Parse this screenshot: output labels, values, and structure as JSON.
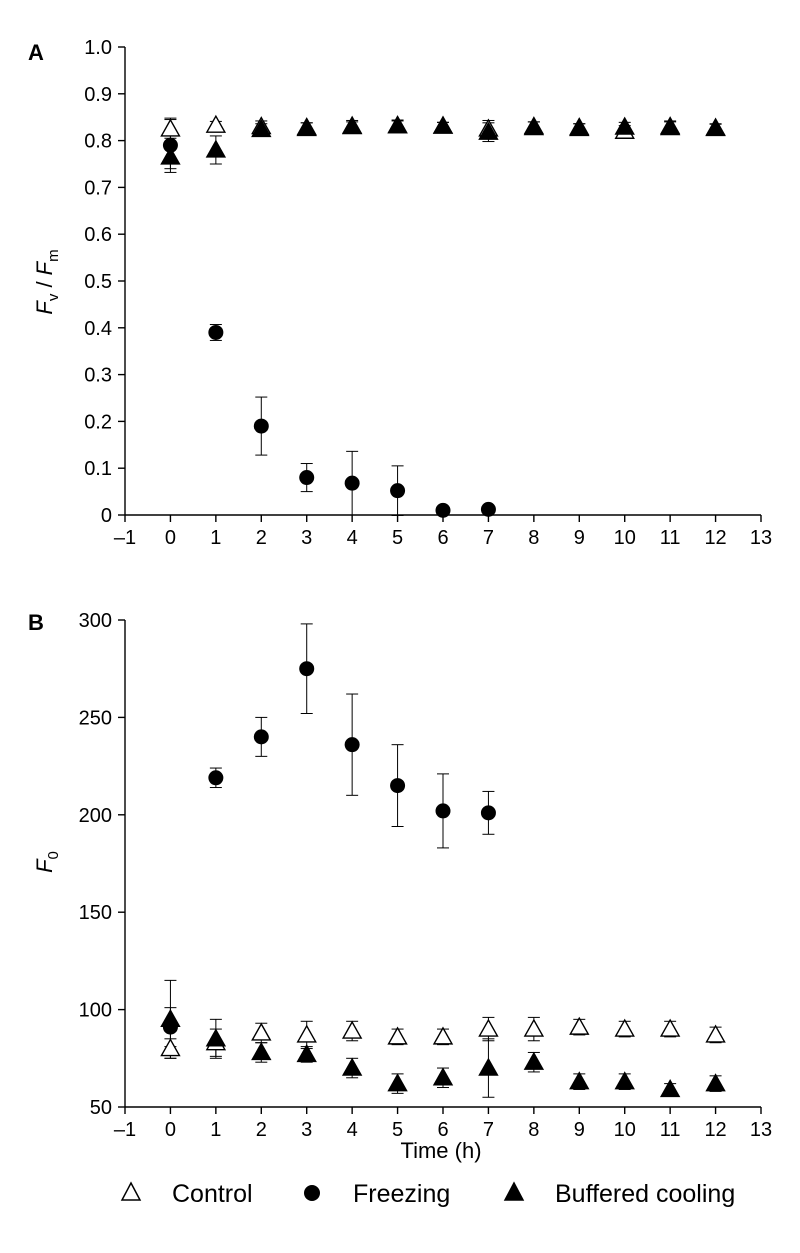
{
  "legend": {
    "items": [
      {
        "label": "Control",
        "marker": "open-triangle"
      },
      {
        "label": "Freezing",
        "marker": "filled-circle"
      },
      {
        "label": "Buffered cooling",
        "marker": "filled-triangle"
      }
    ]
  },
  "chart_data": [
    {
      "type": "scatter",
      "panel": "A",
      "ylabel": "F_v / F_m",
      "ylabel_parts": {
        "f1": "F",
        "sub1": "v",
        "slash": " / ",
        "f2": "F",
        "sub2": "m"
      },
      "xlim": [
        -1,
        13
      ],
      "ylim": [
        0,
        1.0
      ],
      "xticks": [
        "–1",
        "0",
        "1",
        "2",
        "3",
        "4",
        "5",
        "6",
        "7",
        "8",
        "9",
        "10",
        "11",
        "12",
        "13"
      ],
      "yticks": [
        "0",
        "0.1",
        "0.2",
        "0.3",
        "0.4",
        "0.5",
        "0.6",
        "0.7",
        "0.8",
        "0.9",
        "1.0"
      ],
      "series": [
        {
          "name": "Control",
          "marker": "open-triangle",
          "x": [
            0,
            1,
            2,
            3,
            4,
            5,
            6,
            7,
            8,
            9,
            10,
            11,
            12
          ],
          "y": [
            0.825,
            0.833,
            0.83,
            0.828,
            0.83,
            0.832,
            0.831,
            0.825,
            0.83,
            0.828,
            0.82,
            0.828,
            0.827
          ],
          "err": [
            0.02,
            0.008,
            0.012,
            0.01,
            0.01,
            0.01,
            0.008,
            0.018,
            0.01,
            0.008,
            0.012,
            0.012,
            0.008
          ]
        },
        {
          "name": "Freezing",
          "marker": "filled-circle",
          "x": [
            0,
            1,
            2,
            3,
            4,
            5,
            6,
            7
          ],
          "y": [
            0.79,
            0.39,
            0.19,
            0.08,
            0.068,
            0.052,
            0.01,
            0.012
          ],
          "err": [
            0.058,
            0.017,
            0.062,
            0.03,
            0.068,
            0.053,
            0.0,
            0.0
          ]
        },
        {
          "name": "Buffered cooling",
          "marker": "filled-triangle",
          "x": [
            0,
            1,
            2,
            3,
            4,
            5,
            6,
            7,
            8,
            9,
            10,
            11,
            12
          ],
          "y": [
            0.765,
            0.78,
            0.824,
            0.826,
            0.831,
            0.832,
            0.831,
            0.818,
            0.828,
            0.826,
            0.829,
            0.83,
            0.826
          ],
          "err": [
            0.025,
            0.03,
            0.012,
            0.012,
            0.012,
            0.012,
            0.008,
            0.02,
            0.012,
            0.01,
            0.01,
            0.012,
            0.01
          ]
        }
      ]
    },
    {
      "type": "scatter",
      "panel": "B",
      "xlabel": "Time (h)",
      "ylabel": "F_0",
      "ylabel_parts": {
        "f1": "F",
        "sub1": "0"
      },
      "xlim": [
        -1,
        13
      ],
      "ylim": [
        50,
        300
      ],
      "xticks": [
        "–1",
        "0",
        "1",
        "2",
        "3",
        "4",
        "5",
        "6",
        "7",
        "8",
        "9",
        "10",
        "11",
        "12",
        "13"
      ],
      "yticks": [
        "50",
        "100",
        "150",
        "200",
        "250",
        "300"
      ],
      "series": [
        {
          "name": "Control",
          "marker": "open-triangle",
          "x": [
            0,
            1,
            2,
            3,
            4,
            5,
            6,
            7,
            8,
            9,
            10,
            11,
            12
          ],
          "y": [
            80,
            83,
            88,
            87,
            89,
            86,
            86,
            90,
            90,
            91,
            90,
            90,
            87
          ],
          "err": [
            5,
            7,
            5,
            7,
            5,
            4,
            4,
            6,
            6,
            4,
            4,
            4,
            4
          ]
        },
        {
          "name": "Freezing",
          "marker": "filled-circle",
          "x": [
            0,
            1,
            2,
            3,
            4,
            5,
            6,
            7
          ],
          "y": [
            91,
            219,
            240,
            275,
            236,
            215,
            202,
            201
          ],
          "err": [
            10,
            5,
            10,
            23,
            26,
            21,
            19,
            11
          ]
        },
        {
          "name": "Buffered cooling",
          "marker": "filled-triangle",
          "x": [
            0,
            1,
            2,
            3,
            4,
            5,
            6,
            7,
            8,
            9,
            10,
            11,
            12
          ],
          "y": [
            95,
            85,
            78,
            77,
            70,
            62,
            65,
            70,
            73,
            63,
            63,
            59,
            62
          ],
          "err": [
            20,
            10,
            5,
            4,
            5,
            5,
            5,
            15,
            5,
            4,
            4,
            3,
            4
          ]
        }
      ]
    }
  ]
}
